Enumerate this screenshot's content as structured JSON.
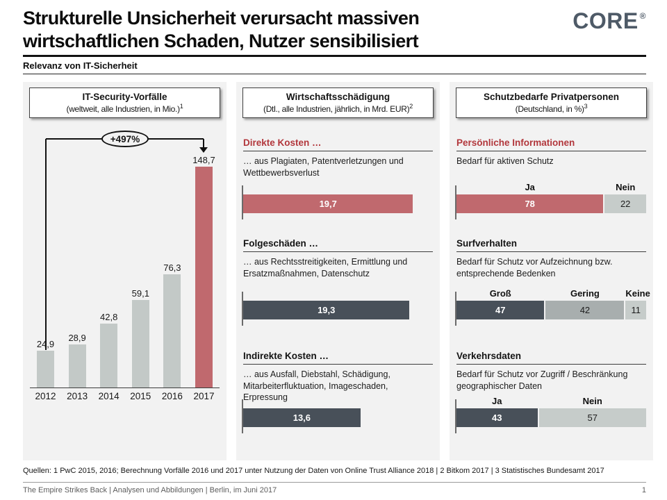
{
  "page": {
    "title_lines": [
      "Strukturelle Unsicherheit verursacht massiven",
      "wirtschaftlichen Schaden, Nutzer sensibilisiert"
    ],
    "kicker": "Relevanz von IT-Sicherheit",
    "logo_text": "CORE",
    "logo_mark": "®",
    "page_number": "1"
  },
  "colors": {
    "accent_red": "#c0696e",
    "heading_red": "#b2373c",
    "dark_slate": "#485059",
    "medium_gray": "#a8aeae",
    "light_gray": "#c6ccca",
    "bar_gray": "#c3c9c7",
    "panel_bg": "#f2f2f2",
    "logo_color": "#4e5a67"
  },
  "chart_data": [
    {
      "type": "bar",
      "title": "IT-Security-Vorfälle",
      "subtitle": "(weltweit, alle Industrien, in Mio.)",
      "footnote_ref": "1",
      "categories": [
        "2012",
        "2013",
        "2014",
        "2015",
        "2016",
        "2017"
      ],
      "values": [
        24.9,
        28.9,
        42.8,
        59.1,
        76.3,
        148.7
      ],
      "value_labels": [
        "24,9",
        "28,9",
        "42,8",
        "59,1",
        "76,3",
        "148,7"
      ],
      "highlight_index": 5,
      "annotation_label": "+497%",
      "grid": false,
      "legend": "none"
    },
    {
      "type": "bar",
      "orientation": "horizontal",
      "title": "Wirtschaftsschädigung",
      "subtitle": "(Dtl., alle Industrien, jährlich, in Mrd. EUR)",
      "footnote_ref": "2",
      "xmax": 22,
      "sections": [
        {
          "heading": "Direkte Kosten …",
          "heading_style": "red",
          "description": "… aus Plagiaten, Patentverletzungen und Wettbewerbsverlust",
          "value": 19.7,
          "value_label": "19,7",
          "color": "accent"
        },
        {
          "heading": "Folgeschäden …",
          "heading_style": "dark",
          "description": "… aus Rechtsstreitigkeiten, Ermittlung und Ersatzmaßnahmen, Datenschutz",
          "value": 19.3,
          "value_label": "19,3",
          "color": "dark"
        },
        {
          "heading": "Indirekte Kosten …",
          "heading_style": "dark",
          "description": "… aus Ausfall, Diebstahl, Schädigung, Mitarbeiterfluktuation, Imageschaden, Erpressung",
          "value": 13.6,
          "value_label": "13,6",
          "color": "dark"
        }
      ]
    },
    {
      "type": "stacked-bar",
      "orientation": "horizontal",
      "title": "Schutzbedarfe Privatpersonen",
      "subtitle": "(Deutschland, in %)",
      "footnote_ref": "3",
      "xmax": 100,
      "sections": [
        {
          "heading": "Persönliche Informationen",
          "heading_style": "red",
          "description": "Bedarf für aktiven Schutz",
          "segments": [
            {
              "label": "Ja",
              "value": 78,
              "color": "accent"
            },
            {
              "label": "Nein",
              "value": 22,
              "color": "light"
            }
          ]
        },
        {
          "heading": "Surfverhalten",
          "heading_style": "dark",
          "description": "Bedarf für Schutz vor Aufzeichnung bzw. entsprechende Bedenken",
          "segments": [
            {
              "label": "Groß",
              "value": 47,
              "color": "dark"
            },
            {
              "label": "Gering",
              "value": 42,
              "color": "medium"
            },
            {
              "label": "Keine",
              "value": 11,
              "color": "light"
            }
          ]
        },
        {
          "heading": "Verkehrsdaten",
          "heading_style": "dark",
          "description": "Bedarf für Schutz vor Zugriff / Beschränkung geographischer Daten",
          "segments": [
            {
              "label": "Ja",
              "value": 43,
              "color": "dark"
            },
            {
              "label": "Nein",
              "value": 57,
              "color": "light"
            }
          ]
        }
      ]
    }
  ],
  "footer": {
    "sources": "Quellen: 1 PwC 2015, 2016; Berechnung Vorfälle 2016 und 2017 unter Nutzung der Daten von Online Trust Alliance 2018 | 2 Bitkom 2017 | 3 Statistisches Bundesamt 2017",
    "meta": "The Empire Strikes Back | Analysen und Abbildungen | Berlin, im Juni 2017"
  }
}
